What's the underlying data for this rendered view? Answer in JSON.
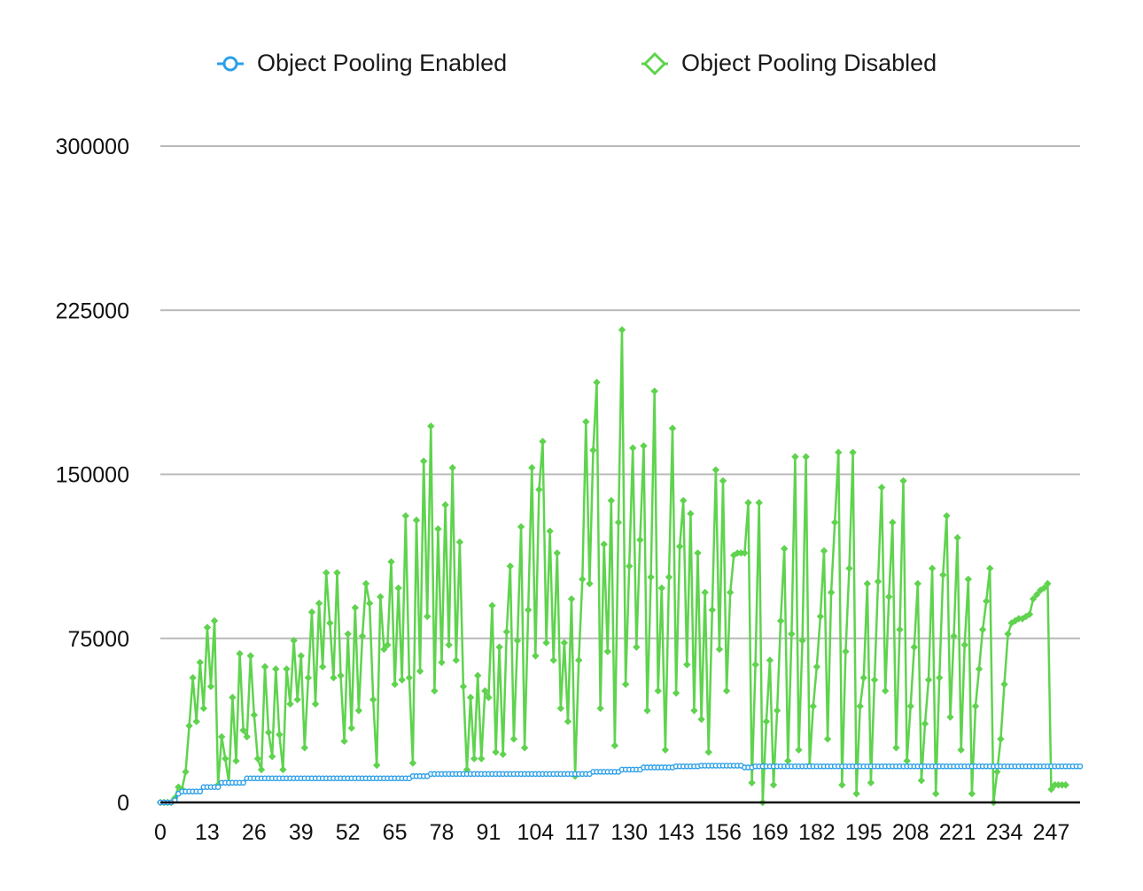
{
  "chart_data": {
    "type": "line",
    "title": "",
    "xlabel": "",
    "ylabel": "",
    "ylim": [
      0,
      300000
    ],
    "yticks": [
      0,
      75000,
      150000,
      225000,
      300000
    ],
    "xticks": [
      0,
      13,
      26,
      39,
      52,
      65,
      78,
      91,
      104,
      117,
      130,
      143,
      156,
      169,
      182,
      195,
      208,
      221,
      234,
      247
    ],
    "xlim": [
      0,
      255
    ],
    "grid": true,
    "legend_position": "top",
    "series": [
      {
        "name": "Object Pooling Enabled",
        "color": "#2b9fe8",
        "marker": "circle",
        "steps": [
          [
            0,
            0
          ],
          [
            4,
            1000
          ],
          [
            5,
            4000
          ],
          [
            6,
            5000
          ],
          [
            12,
            7000
          ],
          [
            17,
            9000
          ],
          [
            24,
            11000
          ],
          [
            70,
            12000
          ],
          [
            75,
            13000
          ],
          [
            120,
            14000
          ],
          [
            128,
            15000
          ],
          [
            134,
            16000
          ],
          [
            143,
            16500
          ],
          [
            150,
            16800
          ],
          [
            162,
            16000
          ],
          [
            165,
            16500
          ],
          [
            255,
            16500
          ]
        ]
      },
      {
        "name": "Object Pooling Disabled",
        "color": "#5fd34e",
        "marker": "diamond",
        "values": [
          0,
          0,
          0,
          0,
          2000,
          7000,
          6000,
          14000,
          35000,
          57000,
          37000,
          64000,
          43000,
          80000,
          53000,
          83000,
          8000,
          30000,
          20000,
          9000,
          48000,
          19000,
          68000,
          33000,
          30000,
          67000,
          40000,
          20000,
          15000,
          62000,
          32000,
          21000,
          61000,
          31000,
          15000,
          61000,
          45000,
          74000,
          47000,
          67000,
          25000,
          57000,
          87000,
          45000,
          91000,
          62000,
          105000,
          82000,
          57000,
          105000,
          58000,
          28000,
          77000,
          34000,
          89000,
          42000,
          76000,
          100000,
          91000,
          47000,
          17000,
          94000,
          70000,
          72000,
          110000,
          54000,
          98000,
          56000,
          131000,
          57000,
          18000,
          129000,
          60000,
          156000,
          85000,
          172000,
          51000,
          125000,
          64000,
          136000,
          72000,
          153000,
          65000,
          119000,
          53000,
          15000,
          48000,
          20000,
          58000,
          20000,
          51000,
          48000,
          90000,
          23000,
          71000,
          22000,
          78000,
          108000,
          29000,
          74000,
          126000,
          25000,
          88000,
          153000,
          67000,
          143000,
          165000,
          73000,
          124000,
          65000,
          114000,
          43000,
          73000,
          37000,
          93000,
          12000,
          65000,
          102000,
          174000,
          100000,
          161000,
          192000,
          43000,
          118000,
          69000,
          138000,
          26000,
          128000,
          216000,
          54000,
          108000,
          162000,
          71000,
          120000,
          163000,
          42000,
          103000,
          188000,
          51000,
          98000,
          24000,
          103000,
          171000,
          50000,
          117000,
          138000,
          63000,
          132000,
          42000,
          114000,
          38000,
          96000,
          23000,
          88000,
          152000,
          70000,
          147000,
          51000,
          96000,
          113000,
          114000,
          114000,
          114000,
          137000,
          9000,
          63000,
          137000,
          0,
          37000,
          65000,
          8000,
          42000,
          83000,
          116000,
          19000,
          77000,
          158000,
          24000,
          74000,
          158000,
          17000,
          44000,
          62000,
          85000,
          115000,
          29000,
          96000,
          128000,
          160000,
          8000,
          69000,
          107000,
          160000,
          4000,
          44000,
          57000,
          100000,
          9000,
          56000,
          101000,
          144000,
          51000,
          94000,
          128000,
          25000,
          79000,
          147000,
          19000,
          44000,
          71000,
          100000,
          10000,
          36000,
          56000,
          107000,
          4000,
          57000,
          104000,
          131000,
          39000,
          76000,
          121000,
          24000,
          72000,
          102000,
          4000,
          44000,
          61000,
          79000,
          92000,
          107000,
          0,
          14000,
          29000,
          54000,
          77000,
          82000,
          83000,
          84000,
          84000,
          85000,
          86000,
          93000,
          95000,
          97000,
          98000,
          100000,
          6000,
          8000,
          8000,
          8000,
          8000
        ]
      }
    ]
  }
}
